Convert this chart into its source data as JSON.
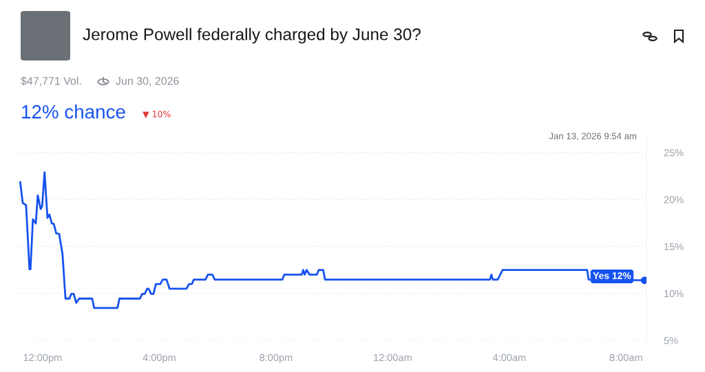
{
  "chart_data": {
    "type": "line",
    "title": "Jerome Powell federally charged by June 30?",
    "annotations": [
      "$47,771 Vol.",
      "Jun 30, 2026",
      "12% chance",
      "▼ 10%",
      "Jan 13, 2026 9:54 am",
      {
        "text": "Yes 12%",
        "x": "2026-01-13T08:38",
        "y": 11.4
      }
    ],
    "series": [
      {
        "color": "#1652f0",
        "x": [
          "2026-01-12T11:14",
          "2026-01-12T11:19",
          "2026-01-12T11:26",
          "2026-01-12T11:33",
          "2026-01-12T11:35",
          "2026-01-12T11:40",
          "2026-01-12T11:46",
          "2026-01-12T11:50",
          "2026-01-12T11:56",
          "2026-01-12T11:59",
          "2026-01-12T12:04",
          "2026-01-12T12:10",
          "2026-01-12T12:14",
          "2026-01-12T12:19",
          "2026-01-12T12:23",
          "2026-01-12T12:28",
          "2026-01-12T12:34",
          "2026-01-12T12:41",
          "2026-01-12T12:47",
          "2026-01-12T12:55",
          "2026-01-12T12:59",
          "2026-01-12T13:04",
          "2026-01-12T13:09",
          "2026-01-12T13:15",
          "2026-01-12T13:42",
          "2026-01-12T13:46",
          "2026-01-12T14:34",
          "2026-01-12T14:38",
          "2026-01-12T15:20",
          "2026-01-12T15:25",
          "2026-01-12T15:30",
          "2026-01-12T15:35",
          "2026-01-12T15:38",
          "2026-01-12T15:43",
          "2026-01-12T15:48",
          "2026-01-12T15:53",
          "2026-01-12T16:02",
          "2026-01-12T16:07",
          "2026-01-12T16:15",
          "2026-01-12T16:21",
          "2026-01-12T16:56",
          "2026-01-12T17:01",
          "2026-01-12T17:07",
          "2026-01-12T17:11",
          "2026-01-12T17:35",
          "2026-01-12T17:40",
          "2026-01-12T17:49",
          "2026-01-12T17:54",
          "2026-01-12T20:13",
          "2026-01-12T20:17",
          "2026-01-12T20:53",
          "2026-01-12T20:56",
          "2026-01-12T20:59",
          "2026-01-12T21:03",
          "2026-01-12T21:09",
          "2026-01-12T21:24",
          "2026-01-12T21:28",
          "2026-01-12T21:37",
          "2026-01-12T21:41",
          "2026-01-13T03:20",
          "2026-01-13T03:23",
          "2026-01-13T03:26",
          "2026-01-13T03:36",
          "2026-01-13T03:46",
          "2026-01-13T06:40",
          "2026-01-13T06:43",
          "2026-01-13T08:38"
        ],
        "values": [
          21.85,
          19.65,
          19.4,
          12.57,
          12.57,
          17.9,
          17.45,
          20.45,
          19.0,
          19.3,
          22.9,
          18.05,
          18.4,
          17.45,
          17.4,
          16.4,
          16.35,
          14.15,
          9.45,
          9.45,
          9.95,
          9.95,
          9.0,
          9.45,
          9.45,
          8.45,
          8.45,
          9.45,
          9.45,
          9.95,
          9.95,
          10.5,
          10.5,
          9.95,
          9.95,
          11.0,
          11.0,
          11.47,
          11.47,
          10.5,
          10.5,
          11.0,
          11.0,
          11.47,
          11.47,
          12.0,
          12.0,
          11.47,
          11.47,
          12.0,
          12.0,
          12.5,
          12.0,
          12.5,
          12.0,
          12.0,
          12.5,
          12.5,
          11.47,
          11.47,
          12.0,
          11.47,
          11.47,
          12.5,
          12.5,
          11.47,
          11.4
        ]
      },
      {
        "type": "scatter",
        "color": "#1652f0",
        "x": [
          "2026-01-13T08:38"
        ],
        "values": [
          11.4
        ]
      }
    ],
    "xlim": [
      "2026-01-12T11:12",
      "2026-01-13T08:42"
    ],
    "xticks": [
      {
        "value": "2026-01-12T12:00",
        "label": "12:00pm"
      },
      {
        "value": "2026-01-12T16:00",
        "label": "4:00pm"
      },
      {
        "value": "2026-01-12T20:00",
        "label": "8:00pm"
      },
      {
        "value": "2026-01-13T00:00",
        "label": "12:00am"
      },
      {
        "value": "2026-01-13T04:00",
        "label": "4:00am"
      },
      {
        "value": "2026-01-13T08:00",
        "label": "8:00am"
      }
    ],
    "ylim": [
      5,
      26.9
    ],
    "yticks": [
      {
        "value": 5,
        "label": "5%"
      },
      {
        "value": 10,
        "label": "10%"
      },
      {
        "value": 15,
        "label": "15%"
      },
      {
        "value": 20,
        "label": "20%"
      },
      {
        "value": 25,
        "label": "25%"
      }
    ],
    "grid": "y",
    "legend": false,
    "line_style": "solid"
  }
}
